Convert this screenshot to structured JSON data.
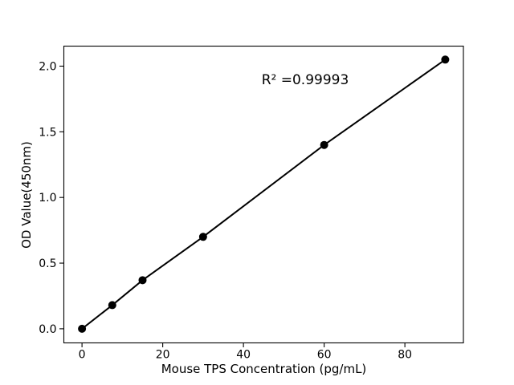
{
  "figure": {
    "background": "#ffffff",
    "ink_color": "#000000"
  },
  "chart_data": {
    "type": "line",
    "title": "",
    "xlabel": "Mouse TPS Concentration (pg/mL)",
    "ylabel": "OD Value(450nm)",
    "series": [
      {
        "name": "standard-curve",
        "x": [
          0,
          7.5,
          15,
          30,
          60,
          90
        ],
        "y": [
          0.0,
          0.18,
          0.37,
          0.7,
          1.4,
          2.05
        ],
        "line_color": "#000000",
        "line_width": 2,
        "marker": "circle",
        "marker_color": "#000000",
        "marker_radius": 5
      }
    ],
    "xlim": [
      -4.5,
      94.5
    ],
    "ylim": [
      -0.1075,
      2.1525
    ],
    "xticks": {
      "values": [
        0,
        20,
        40,
        60,
        80
      ],
      "labels": [
        "0",
        "20",
        "40",
        "60",
        "80"
      ]
    },
    "yticks": {
      "values": [
        0,
        0.5,
        1.0,
        1.5,
        2.0
      ],
      "labels": [
        "0.0",
        "0.5",
        "1.0",
        "1.5",
        "2.0"
      ]
    },
    "grid": false,
    "legend": null,
    "annotation": {
      "text": "R² =0.99993",
      "x": 55.3,
      "y": 1.9
    }
  }
}
